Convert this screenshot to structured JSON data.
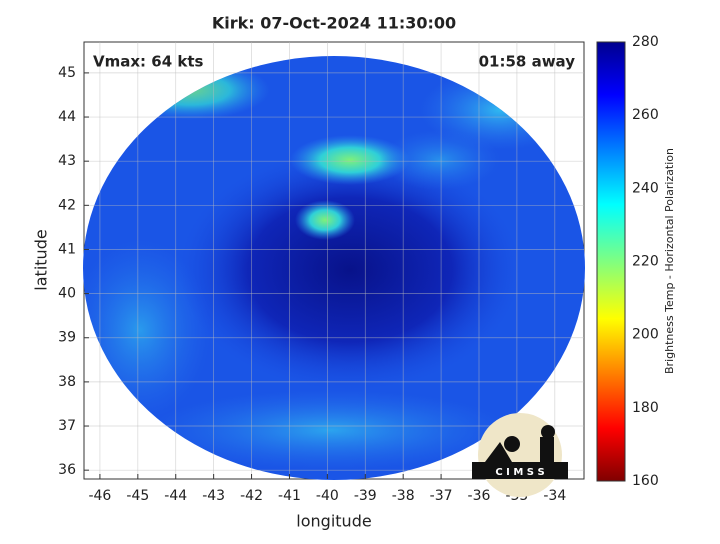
{
  "chart_data": {
    "type": "map",
    "title": "Kirk: 07-Oct-2024 11:30:00",
    "x_label": "longitude",
    "y_label": "latitude",
    "xlim": [
      -46.42,
      -33.23
    ],
    "ylim": [
      35.8,
      45.7
    ],
    "xticks": [
      -46,
      -45,
      -44,
      -43,
      -42,
      -41,
      -40,
      -39,
      -38,
      -37,
      -36,
      -35,
      -34
    ],
    "yticks": [
      36,
      37,
      38,
      39,
      40,
      41,
      42,
      43,
      44,
      45
    ],
    "grid": true,
    "annotations": [
      "Vmax: 64 kts",
      "01:58 away"
    ],
    "colorbar": {
      "label": "Brightness Temp - Horizontal Polarization",
      "lim": [
        160,
        280
      ],
      "ticks": [
        160,
        180,
        200,
        220,
        240,
        260,
        280
      ]
    },
    "logo": "C I M S S"
  }
}
